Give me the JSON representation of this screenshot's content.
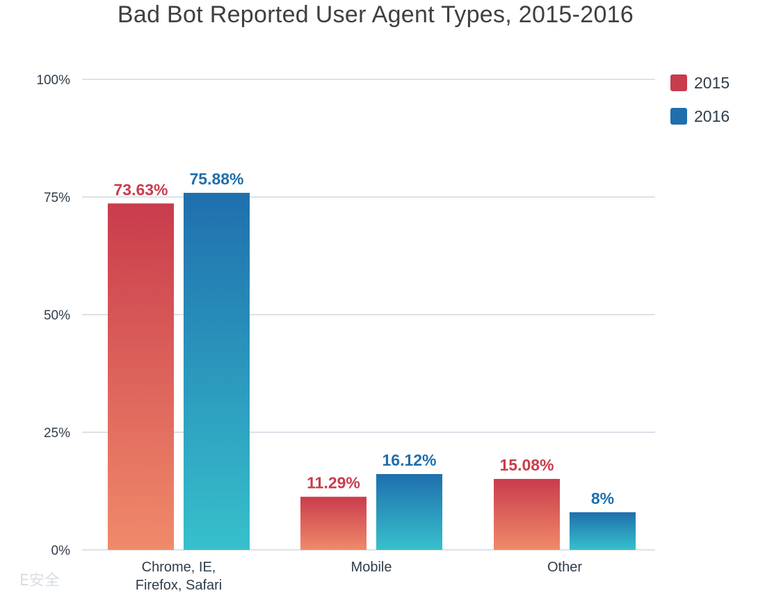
{
  "chart_data": {
    "type": "bar",
    "title": "Bad Bot Reported User Agent Types, 2015-2016",
    "xlabel": "",
    "ylabel": "",
    "ylim": [
      0,
      100
    ],
    "yticks": [
      "0%",
      "25%",
      "50%",
      "75%",
      "100%"
    ],
    "ytick_values": [
      0,
      25,
      50,
      75,
      100
    ],
    "categories": [
      "Chrome, IE,\nFirefox, Safari",
      "Mobile",
      "Other"
    ],
    "series": [
      {
        "name": "2015",
        "values": [
          73.63,
          11.29,
          15.08
        ],
        "labels": [
          "73.63%",
          "11.29%",
          "15.08%"
        ],
        "color": "#c93c4c",
        "gradient_bottom": "#f08a6a"
      },
      {
        "name": "2016",
        "values": [
          75.88,
          16.12,
          8
        ],
        "labels": [
          "75.88%",
          "16.12%",
          "8%"
        ],
        "color": "#1f6fad",
        "gradient_bottom": "#37c0cc"
      }
    ],
    "grid": true,
    "legend_position": "top-right"
  },
  "watermark": {
    "text": "E安全"
  }
}
